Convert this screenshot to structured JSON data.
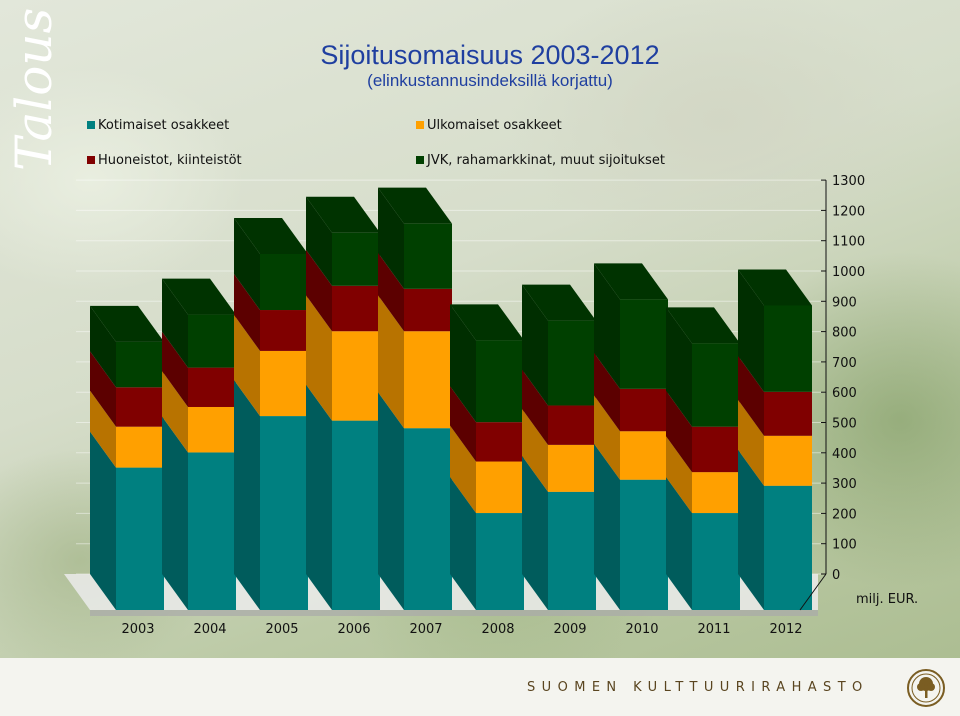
{
  "side_title": "Talous",
  "colors": {
    "kotimaiset": "#008080",
    "ulkomaiset": "#ffa000",
    "huoneistot": "#800000",
    "jvk": "#004000",
    "brand": "#5a4520",
    "title": "#1f3fa0"
  },
  "legend": [
    {
      "label": "Kotimaiset osakkeet",
      "color": "#008080"
    },
    {
      "label": "Ulkomaiset osakkeet",
      "color": "#ffa000"
    },
    {
      "label": "Huoneistot, kiinteistöt",
      "color": "#800000"
    },
    {
      "label": "JVK, rahamarkkinat, muut sijoitukset",
      "color": "#004000"
    }
  ],
  "footer": {
    "brand": "SUOMEN KULTTUURIRAHASTO",
    "seal_icon": "tree-seal-icon"
  },
  "chart_data": {
    "type": "bar",
    "stacked": true,
    "three_d": true,
    "title": "Sijoitusomaisuus 2003-2012",
    "subtitle": "(elinkustannusindeksillä korjattu)",
    "unit": "milj. EUR.",
    "xlabel": "",
    "ylabel": "",
    "ylim": [
      0,
      1300
    ],
    "yticks": [
      0,
      100,
      200,
      300,
      400,
      500,
      600,
      700,
      800,
      900,
      1000,
      1100,
      1200,
      1300
    ],
    "grid": true,
    "axis_side": "right",
    "legend_position": "top",
    "categories": [
      "2003",
      "2004",
      "2005",
      "2006",
      "2007",
      "2008",
      "2009",
      "2010",
      "2011",
      "2012"
    ],
    "series": [
      {
        "name": "Kotimaiset osakkeet",
        "color": "#008080",
        "values": [
          470,
          520,
          640,
          625,
          600,
          320,
          390,
          430,
          320,
          410
        ]
      },
      {
        "name": "Ulkomaiset osakkeet",
        "color": "#ffa000",
        "values": [
          135,
          150,
          215,
          295,
          320,
          170,
          155,
          160,
          135,
          165
        ]
      },
      {
        "name": "Huoneistot, kiinteistöt",
        "color": "#800000",
        "values": [
          130,
          130,
          135,
          150,
          140,
          130,
          130,
          140,
          150,
          145
        ]
      },
      {
        "name": "JVK, rahamarkkinat, muut sijoitukset",
        "color": "#004000",
        "values": [
          150,
          175,
          185,
          175,
          215,
          270,
          280,
          295,
          275,
          285
        ]
      }
    ]
  }
}
